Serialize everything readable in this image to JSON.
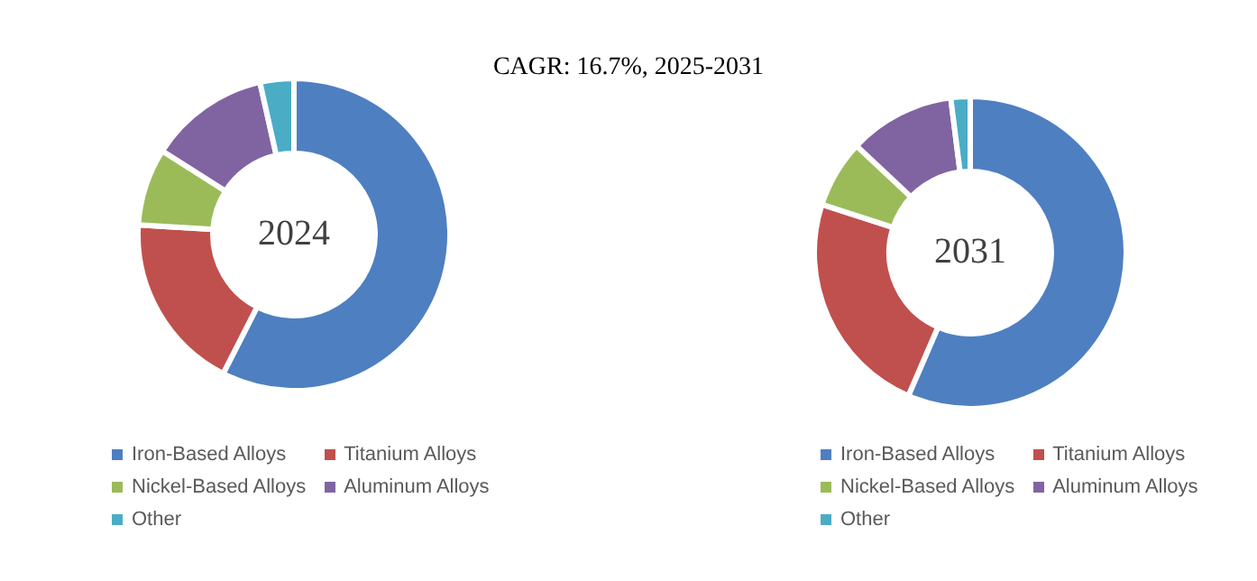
{
  "chart_data": [
    {
      "type": "donut",
      "title": "2024",
      "annotations": [
        "CAGR:  16.7%, 2025-2031"
      ],
      "categories": [
        "Iron-Based Alloys",
        "Titanium Alloys",
        "Nickel-Based Alloys",
        "Aluminum Alloys",
        "Other"
      ],
      "values": [
        57.5,
        18.5,
        8,
        12.5,
        3.5
      ],
      "colors": [
        "#4e7fc1",
        "#c0504d",
        "#9bbb59",
        "#8064a2",
        "#4bacc6"
      ],
      "legend": "bottom"
    },
    {
      "type": "donut",
      "title": "2031",
      "categories": [
        "Iron-Based Alloys",
        "Titanium Alloys",
        "Nickel-Based Alloys",
        "Aluminum Alloys",
        "Other"
      ],
      "values": [
        56.5,
        23.5,
        7,
        11,
        2
      ],
      "colors": [
        "#4e7fc1",
        "#c0504d",
        "#9bbb59",
        "#8064a2",
        "#4bacc6"
      ],
      "legend": "bottom"
    }
  ]
}
